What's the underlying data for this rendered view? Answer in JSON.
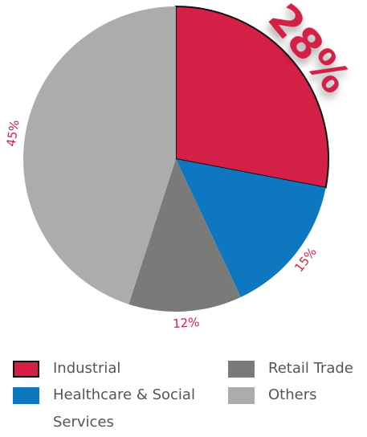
{
  "chart_data": {
    "type": "pie",
    "categories": [
      "Industrial",
      "Healthcare & Social Services",
      "Retail Trade",
      "Others"
    ],
    "values": [
      28,
      15,
      12,
      45
    ],
    "value_labels": [
      "28%",
      "15%",
      "12%",
      "45%"
    ],
    "colors": [
      "#d42047",
      "#0f77c0",
      "#7a7a78",
      "#acacac"
    ]
  }
}
